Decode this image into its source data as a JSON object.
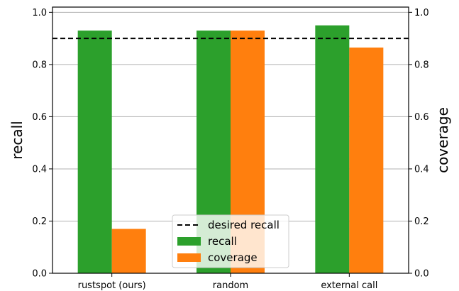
{
  "chart_data": {
    "type": "bar",
    "categories": [
      "rustspot (ours)",
      "random",
      "external call"
    ],
    "series": [
      {
        "name": "recall",
        "values": [
          0.93,
          0.93,
          0.95
        ],
        "color": "#2ca02c"
      },
      {
        "name": "coverage",
        "values": [
          0.17,
          0.93,
          0.865
        ],
        "color": "#ff7f0e"
      }
    ],
    "reference_line": {
      "name": "desired recall",
      "value": 0.9,
      "color": "#000000",
      "style": "dashed"
    },
    "ylabel_left": "recall",
    "ylabel_right": "coverage",
    "ylim": [
      0,
      1.02
    ],
    "yticks": [
      0.0,
      0.2,
      0.4,
      0.6,
      0.8,
      1.0
    ],
    "ytick_labels": [
      "0.0",
      "0.2",
      "0.4",
      "0.6",
      "0.8",
      "1.0"
    ],
    "grid": "horizontal",
    "legend_position": "bottom-center"
  }
}
